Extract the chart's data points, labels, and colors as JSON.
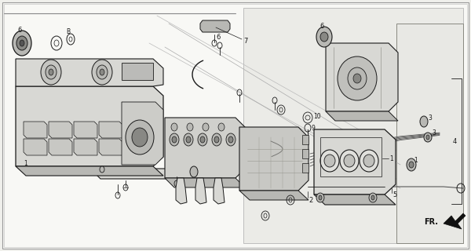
{
  "bg_color": "#f0f0ec",
  "line_color": "#1a1a1a",
  "fig_width": 6.0,
  "fig_height": 3.2,
  "dpi": 100,
  "border_color": "#888888",
  "white": "#f8f8f5",
  "light_gray": "#d8d8d4",
  "mid_gray": "#b8b8b4",
  "dark_gray": "#888884"
}
